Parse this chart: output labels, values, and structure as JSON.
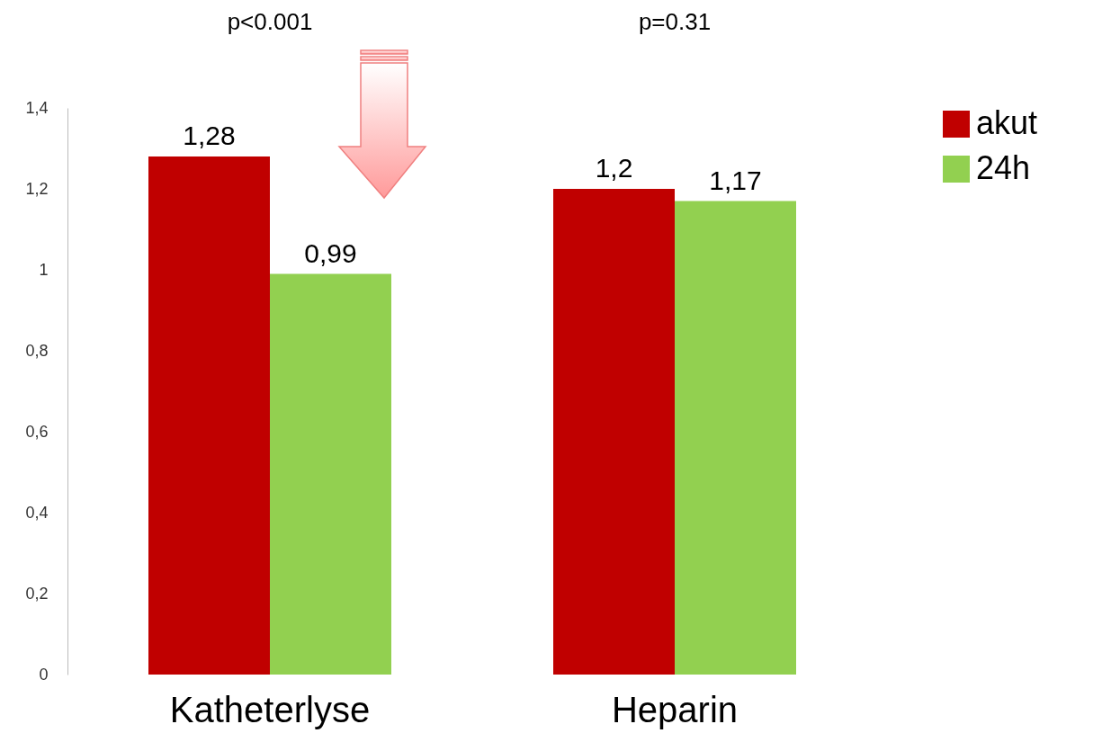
{
  "chart_data": {
    "type": "bar",
    "categories": [
      "Katheterlyse",
      "Heparin"
    ],
    "series": [
      {
        "name": "akut",
        "color": "#c00000",
        "values": [
          1.28,
          1.2
        ],
        "value_labels": [
          "1,28",
          "1,2"
        ]
      },
      {
        "name": "24h",
        "color": "#92d050",
        "values": [
          0.99,
          1.17
        ],
        "value_labels": [
          "0,99",
          "1,17"
        ]
      }
    ],
    "ylim": [
      0,
      1.4
    ],
    "yticks": [
      0,
      {
        "value": 0.2,
        "label": "0,2"
      },
      {
        "value": 0.4,
        "label": "0,4"
      },
      {
        "value": 0.6,
        "label": "0,6"
      },
      {
        "value": 0.8,
        "label": "0,8"
      },
      1,
      {
        "value": 1.2,
        "label": "1,2"
      },
      {
        "value": 1.4,
        "label": "1,4"
      }
    ],
    "annotations": [
      "p<0.001",
      "p=0.31"
    ],
    "grid": false,
    "legend": "right"
  }
}
